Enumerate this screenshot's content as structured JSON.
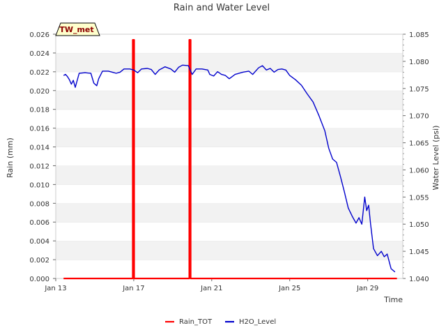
{
  "chart_data": {
    "type": "line",
    "title": "Rain and Water Level",
    "badge": "TW_met",
    "xlabel": "Time",
    "ylabel_left": "Rain (mm)",
    "ylabel_right": "Water Level (psi)",
    "x_range_days": [
      "2024-01-13",
      "2024-01-30.8"
    ],
    "ylim_left": [
      0,
      0.026
    ],
    "ylim_right": [
      1.04,
      1.085
    ],
    "x_ticks": [
      {
        "label": "Jan 13",
        "day": 13
      },
      {
        "label": "Jan 17",
        "day": 17
      },
      {
        "label": "Jan 21",
        "day": 21
      },
      {
        "label": "Jan 25",
        "day": 25
      },
      {
        "label": "Jan 29",
        "day": 29
      }
    ],
    "y_ticks_left": [
      "0.000",
      "0.002",
      "0.004",
      "0.006",
      "0.008",
      "0.010",
      "0.012",
      "0.014",
      "0.016",
      "0.018",
      "0.020",
      "0.022",
      "0.024",
      "0.026"
    ],
    "y_ticks_right": [
      "1.040",
      "1.045",
      "1.050",
      "1.055",
      "1.060",
      "1.065",
      "1.070",
      "1.075",
      "1.080",
      "1.085"
    ],
    "grid": "horizontal bands",
    "legend_position": "bottom",
    "series": [
      {
        "name": "Rain_TOT",
        "color": "#ff0000",
        "axis": "left",
        "points": [
          [
            "2024-01-13.4",
            0
          ],
          [
            "2024-01-16.95",
            0
          ],
          [
            "2024-01-16.95",
            0.0254
          ],
          [
            "2024-01-17.02",
            0.0254
          ],
          [
            "2024-01-17.02",
            0
          ],
          [
            "2024-01-19.85",
            0
          ],
          [
            "2024-01-19.85",
            0.0254
          ],
          [
            "2024-01-19.92",
            0.0254
          ],
          [
            "2024-01-19.92",
            0
          ],
          [
            "2024-01-30.5",
            0
          ]
        ]
      },
      {
        "name": "H2O_Level",
        "color": "#0000cc",
        "axis": "right",
        "points": [
          [
            "2024-01-13.4",
            1.0774
          ],
          [
            "2024-01-13.5",
            1.0776
          ],
          [
            "2024-01-13.6",
            1.0772
          ],
          [
            "2024-01-13.7",
            1.0766
          ],
          [
            "2024-01-13.8",
            1.0758
          ],
          [
            "2024-01-13.9",
            1.0765
          ],
          [
            "2024-01-14.0",
            1.0752
          ],
          [
            "2024-01-14.2",
            1.0778
          ],
          [
            "2024-01-14.5",
            1.0779
          ],
          [
            "2024-01-14.8",
            1.0778
          ],
          [
            "2024-01-14.95",
            1.076
          ],
          [
            "2024-01-15.1",
            1.0755
          ],
          [
            "2024-01-15.2",
            1.0768
          ],
          [
            "2024-01-15.4",
            1.0782
          ],
          [
            "2024-01-15.7",
            1.0782
          ],
          [
            "2024-01-15.9",
            1.078
          ],
          [
            "2024-01-16.1",
            1.0778
          ],
          [
            "2024-01-16.3",
            1.078
          ],
          [
            "2024-01-16.5",
            1.0786
          ],
          [
            "2024-01-16.8",
            1.0786
          ],
          [
            "2024-01-17.0",
            1.0784
          ],
          [
            "2024-01-17.2",
            1.0779
          ],
          [
            "2024-01-17.4",
            1.0786
          ],
          [
            "2024-01-17.7",
            1.0787
          ],
          [
            "2024-01-17.9",
            1.0785
          ],
          [
            "2024-01-18.1",
            1.0776
          ],
          [
            "2024-01-18.3",
            1.0784
          ],
          [
            "2024-01-18.6",
            1.079
          ],
          [
            "2024-01-18.9",
            1.0786
          ],
          [
            "2024-01-19.1",
            1.078
          ],
          [
            "2024-01-19.3",
            1.0789
          ],
          [
            "2024-01-19.5",
            1.0793
          ],
          [
            "2024-01-19.8",
            1.0792
          ],
          [
            "2024-01-20.0",
            1.0776
          ],
          [
            "2024-01-20.2",
            1.0786
          ],
          [
            "2024-01-20.5",
            1.0786
          ],
          [
            "2024-01-20.8",
            1.0784
          ],
          [
            "2024-01-20.9",
            1.0776
          ],
          [
            "2024-01-21.1",
            1.0773
          ],
          [
            "2024-01-21.3",
            1.0781
          ],
          [
            "2024-01-21.5",
            1.0776
          ],
          [
            "2024-01-21.7",
            1.0774
          ],
          [
            "2024-01-21.9",
            1.0768
          ],
          [
            "2024-01-22.2",
            1.0776
          ],
          [
            "2024-01-22.6",
            1.078
          ],
          [
            "2024-01-22.9",
            1.0782
          ],
          [
            "2024-01-23.1",
            1.0776
          ],
          [
            "2024-01-23.4",
            1.0788
          ],
          [
            "2024-01-23.6",
            1.0792
          ],
          [
            "2024-01-23.8",
            1.0784
          ],
          [
            "2024-01-24.0",
            1.0787
          ],
          [
            "2024-01-24.2",
            1.078
          ],
          [
            "2024-01-24.4",
            1.0785
          ],
          [
            "2024-01-24.6",
            1.0786
          ],
          [
            "2024-01-24.8",
            1.0784
          ],
          [
            "2024-01-25.0",
            1.0774
          ],
          [
            "2024-01-25.3",
            1.0766
          ],
          [
            "2024-01-25.6",
            1.0756
          ],
          [
            "2024-01-25.9",
            1.074
          ],
          [
            "2024-01-26.2",
            1.0725
          ],
          [
            "2024-01-26.5",
            1.07
          ],
          [
            "2024-01-26.8",
            1.0672
          ],
          [
            "2024-01-27.0",
            1.064
          ],
          [
            "2024-01-27.2",
            1.062
          ],
          [
            "2024-01-27.4",
            1.0614
          ],
          [
            "2024-01-27.6",
            1.0588
          ],
          [
            "2024-01-27.8",
            1.056
          ],
          [
            "2024-01-28.0",
            1.053
          ],
          [
            "2024-01-28.2",
            1.0515
          ],
          [
            "2024-01-28.4",
            1.0502
          ],
          [
            "2024-01-28.55",
            1.0512
          ],
          [
            "2024-01-28.7",
            1.05
          ],
          [
            "2024-01-28.85",
            1.055
          ],
          [
            "2024-01-28.95",
            1.0525
          ],
          [
            "2024-01-29.05",
            1.0535
          ],
          [
            "2024-01-29.15",
            1.05
          ],
          [
            "2024-01-29.3",
            1.0455
          ],
          [
            "2024-01-29.5",
            1.0442
          ],
          [
            "2024-01-29.7",
            1.045
          ],
          [
            "2024-01-29.85",
            1.044
          ],
          [
            "2024-01-30.0",
            1.0445
          ],
          [
            "2024-01-30.2",
            1.0418
          ],
          [
            "2024-01-30.4",
            1.0412
          ]
        ]
      }
    ]
  }
}
